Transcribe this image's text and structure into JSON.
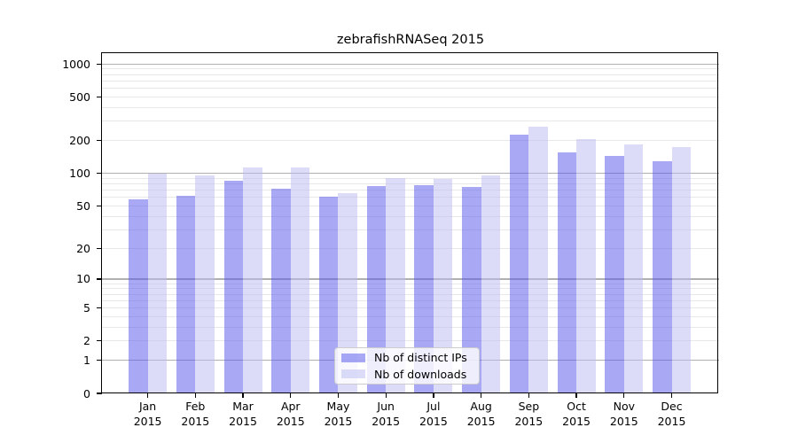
{
  "title": "zebrafishRNASeq 2015",
  "chart_data": {
    "type": "bar",
    "title": "zebrafishRNASeq 2015",
    "categories": [
      "Jan",
      "Feb",
      "Mar",
      "Apr",
      "May",
      "Jun",
      "Jul",
      "Aug",
      "Sep",
      "Oct",
      "Nov",
      "Dec"
    ],
    "year_label": "2015",
    "series": [
      {
        "name": "Nb of distinct IPs",
        "color": "#a8a8f5",
        "values": [
          58,
          62,
          86,
          72,
          61,
          77,
          78,
          75,
          225,
          157,
          145,
          129
        ]
      },
      {
        "name": "Nb of downloads",
        "color": "#dcdcf8",
        "values": [
          100,
          95,
          114,
          113,
          66,
          91,
          89,
          95,
          268,
          206,
          184,
          175
        ]
      }
    ],
    "yscale": "log1p",
    "y_tick_values": [
      0,
      1,
      2,
      5,
      10,
      20,
      50,
      100,
      200,
      500,
      1000
    ],
    "ylim": [
      0,
      1258
    ],
    "grid": true,
    "legend_position": "lower-center"
  },
  "colors": {
    "distinct_ips": "#a8a8f5",
    "downloads": "#dcdcf8",
    "grid_major": "#b0b0b0",
    "grid_minor": "#e8e8e8",
    "axis": "#000000",
    "legend_border": "#cccccc"
  }
}
